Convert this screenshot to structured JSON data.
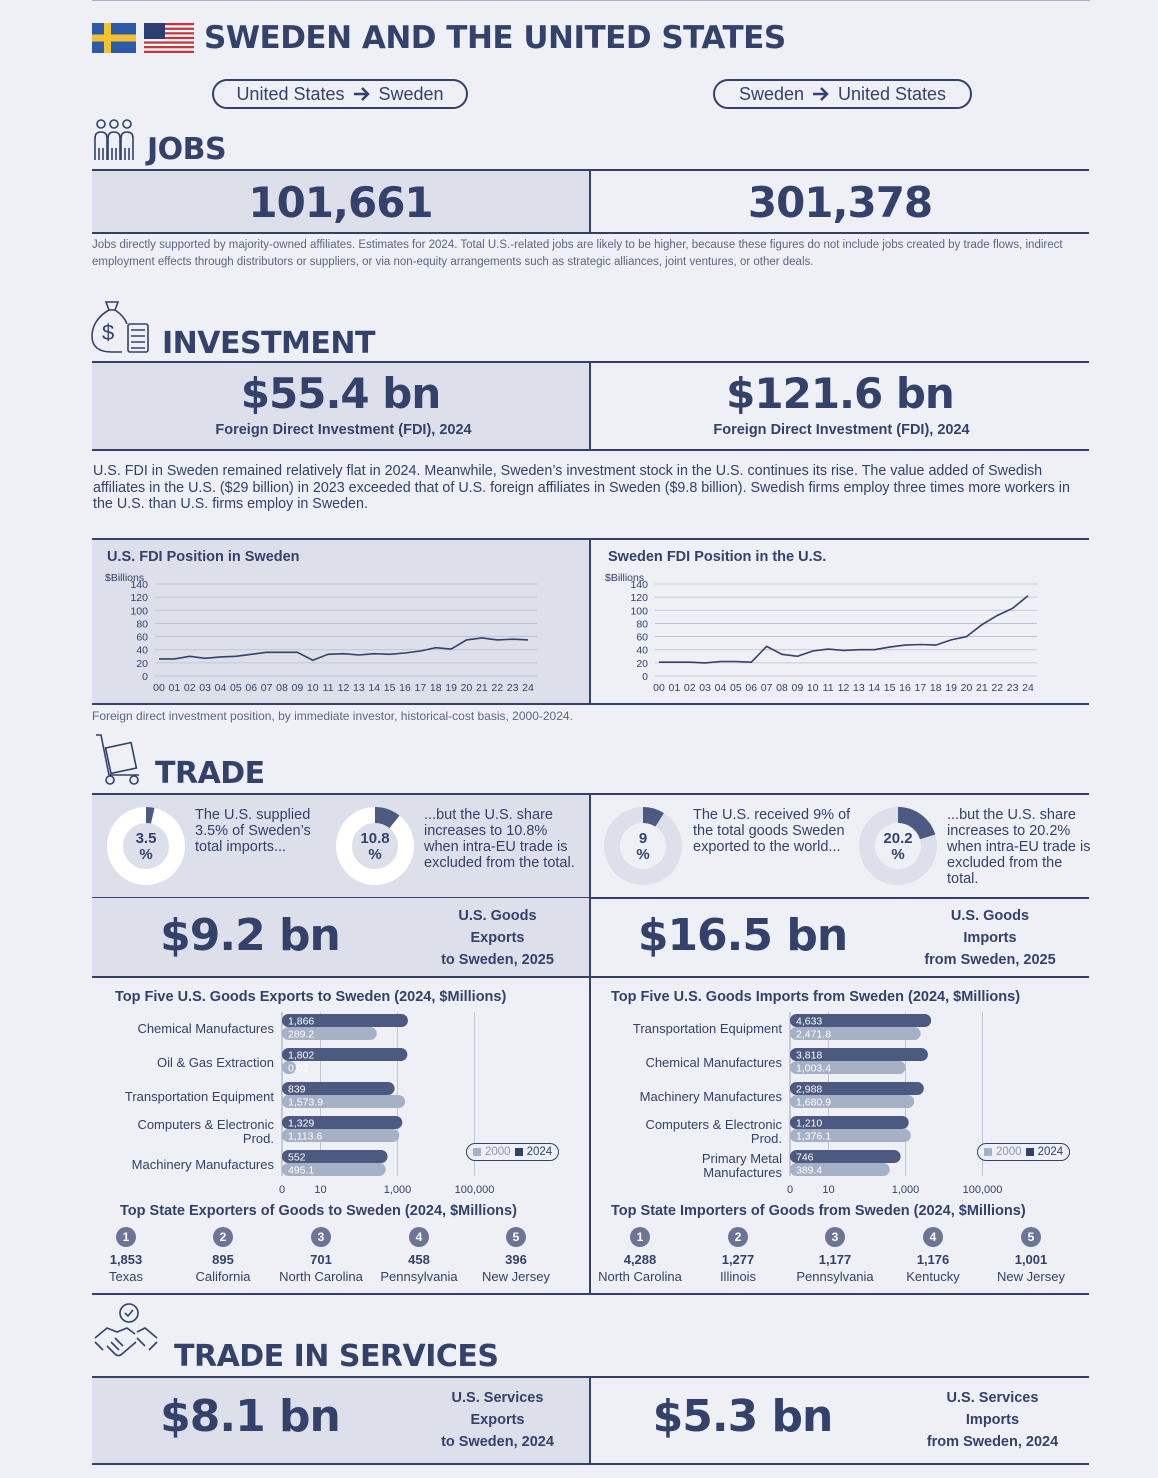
{
  "title": "SWEDEN AND THE UNITED STATES",
  "direction_left": {
    "from": "United States",
    "to": "Sweden"
  },
  "direction_right": {
    "from": "Sweden",
    "to": "United States"
  },
  "jobs": {
    "heading": "JOBS",
    "us_in_sweden": "101,661",
    "sweden_in_us": "301,378",
    "note": "Jobs directly supported by majority-owned affiliates. Estimates for 2024. Total U.S.-related jobs are likely to be higher, because these figures do not include jobs created by trade flows, indirect employment effects through distributors or suppliers, or via non-equity arrangements such as strategic alliances, joint ventures, or other deals."
  },
  "investment": {
    "heading": "INVESTMENT",
    "left_value": "$55.4 bn",
    "left_label": "Foreign Direct Investment (FDI), 2024",
    "right_value": "$121.6 bn",
    "right_label": "Foreign Direct Investment (FDI), 2024",
    "paragraph": "U.S. FDI in Sweden remained relatively flat in 2024. Meanwhile, Sweden’s investment stock in the U.S. continues its rise. The value added of Swedish affiliates in the U.S. ($29 billion) in 2023 exceeded that of U.S. foreign affiliates in Sweden ($9.8 billion). Swedish firms employ three times more workers in the U.S. than U.S. firms employ in Sweden.",
    "chart_note": "Foreign direct investment position, by immediate investor, historical-cost basis, 2000-2024."
  },
  "trade": {
    "heading": "TRADE",
    "donuts": [
      {
        "value": "3.5",
        "unit": "%",
        "pct": 3.5,
        "text": "The U.S. supplied 3.5% of Sweden’s total imports..."
      },
      {
        "value": "10.8",
        "unit": "%",
        "pct": 10.8,
        "text": "...but the U.S. share increases to 10.8% when intra-EU trade is excluded from the total."
      },
      {
        "value": "9",
        "unit": "%",
        "pct": 9,
        "text": "The U.S. received 9% of the total goods Sweden exported to the world..."
      },
      {
        "value": "20.2",
        "unit": "%",
        "pct": 20.2,
        "text": "...but the U.S. share increases to 20.2% when intra-EU trade is excluded from the total."
      }
    ],
    "goods_exports": {
      "value": "$9.2 bn",
      "l1": "U.S. Goods",
      "l2": "Exports",
      "l3": "to Sweden, 2025"
    },
    "goods_imports": {
      "value": "$16.5 bn",
      "l1": "U.S. Goods",
      "l2": "Imports",
      "l3": "from Sweden, 2025"
    },
    "state_exporters": {
      "title": "Top State Exporters of Goods to Sweden (2024, $Millions)",
      "items": [
        {
          "rank": "1",
          "value": "1,853",
          "state": "Texas"
        },
        {
          "rank": "2",
          "value": "895",
          "state": "California"
        },
        {
          "rank": "3",
          "value": "701",
          "state": "North Carolina"
        },
        {
          "rank": "4",
          "value": "458",
          "state": "Pennsylvania"
        },
        {
          "rank": "5",
          "value": "396",
          "state": "New Jersey"
        }
      ]
    },
    "state_importers": {
      "title": "Top State Importers of Goods from Sweden (2024, $Millions)",
      "items": [
        {
          "rank": "1",
          "value": "4,288",
          "state": "North Carolina"
        },
        {
          "rank": "2",
          "value": "1,277",
          "state": "Illinois"
        },
        {
          "rank": "3",
          "value": "1,177",
          "state": "Pennsylvania"
        },
        {
          "rank": "4",
          "value": "1,176",
          "state": "Kentucky"
        },
        {
          "rank": "5",
          "value": "1,001",
          "state": "New Jersey"
        }
      ]
    }
  },
  "services": {
    "heading": "TRADE IN SERVICES",
    "exports": {
      "value": "$8.1 bn",
      "l1": "U.S. Services",
      "l2": "Exports",
      "l3": "to Sweden, 2024"
    },
    "imports": {
      "value": "$5.3 bn",
      "l1": "U.S. Services",
      "l2": "Imports",
      "l3": "from Sweden, 2024"
    }
  },
  "colors": {
    "navy": "#33416b",
    "bar2024": "#4c5980",
    "bar2000": "#a7b1c6",
    "panel": "#dde0ea",
    "page": "#eef0f5"
  },
  "chart_data": [
    {
      "type": "line",
      "title": "U.S. FDI Position in Sweden",
      "ylabel": "$Billions",
      "x": [
        "00",
        "01",
        "02",
        "03",
        "04",
        "05",
        "06",
        "07",
        "08",
        "09",
        "10",
        "11",
        "12",
        "13",
        "14",
        "15",
        "16",
        "17",
        "18",
        "19",
        "20",
        "21",
        "22",
        "23",
        "24"
      ],
      "y": [
        26,
        26,
        30,
        27,
        29,
        30,
        33,
        36,
        36,
        36,
        24,
        33,
        34,
        32,
        34,
        33,
        35,
        38,
        43,
        41,
        55,
        58,
        55,
        56,
        55
      ],
      "ylim": [
        0,
        140
      ],
      "yticks": [
        0,
        20,
        40,
        60,
        80,
        100,
        120,
        140
      ],
      "grid": true
    },
    {
      "type": "line",
      "title": "Sweden FDI Position in the U.S.",
      "ylabel": "$Billions",
      "x": [
        "00",
        "01",
        "02",
        "03",
        "04",
        "05",
        "06",
        "07",
        "08",
        "09",
        "10",
        "11",
        "12",
        "13",
        "14",
        "15",
        "16",
        "17",
        "18",
        "19",
        "20",
        "21",
        "22",
        "23",
        "24"
      ],
      "y": [
        21,
        21,
        21,
        20,
        22,
        22,
        21,
        45,
        33,
        30,
        38,
        41,
        39,
        40,
        40,
        44,
        47,
        48,
        47,
        55,
        60,
        78,
        92,
        103,
        122
      ],
      "ylim": [
        0,
        140
      ],
      "yticks": [
        0,
        20,
        40,
        60,
        80,
        100,
        120,
        140
      ],
      "grid": true
    },
    {
      "type": "bar",
      "title": "Top Five U.S. Goods Exports to Sweden (2024, $Millions)",
      "categories": [
        "Chemical Manufactures",
        "Oil & Gas Extraction",
        "Transportation Equipment",
        "Computers & Electronic Prod.",
        "Machinery Manufactures"
      ],
      "series": [
        {
          "name": "2024",
          "values": [
            1866,
            1802,
            839,
            1329,
            552
          ],
          "labels": [
            "1,866",
            "1,802",
            "839",
            "1,329",
            "552"
          ]
        },
        {
          "name": "2000",
          "values": [
            289.2,
            0.02,
            1573.9,
            1113.6,
            495.1
          ],
          "labels": [
            "289.2",
            "0.02",
            "1,573.9",
            "1,113.6",
            "495.1"
          ]
        }
      ],
      "xscale": "log",
      "xticks": [
        "0",
        "10",
        "1,000",
        "100,000"
      ],
      "legend": "bottom-right"
    },
    {
      "type": "bar",
      "title": "Top Five U.S. Goods Imports from Sweden (2024, $Millions)",
      "categories": [
        "Transportation Equipment",
        "Chemical Manufactures",
        "Machinery Manufactures",
        "Computers & Electronic Prod.",
        "Primary Metal Manufactures"
      ],
      "series": [
        {
          "name": "2024",
          "values": [
            4633,
            3818,
            2988,
            1210,
            746
          ],
          "labels": [
            "4,633",
            "3,818",
            "2,988",
            "1,210",
            "746"
          ]
        },
        {
          "name": "2000",
          "values": [
            2471.8,
            1003.4,
            1680.9,
            1376.1,
            389.4
          ],
          "labels": [
            "2,471.8",
            "1,003.4",
            "1,680.9",
            "1,376.1",
            "389.4"
          ]
        }
      ],
      "xscale": "log",
      "xticks": [
        "0",
        "10",
        "1,000",
        "100,000"
      ],
      "legend": "bottom-right"
    }
  ]
}
